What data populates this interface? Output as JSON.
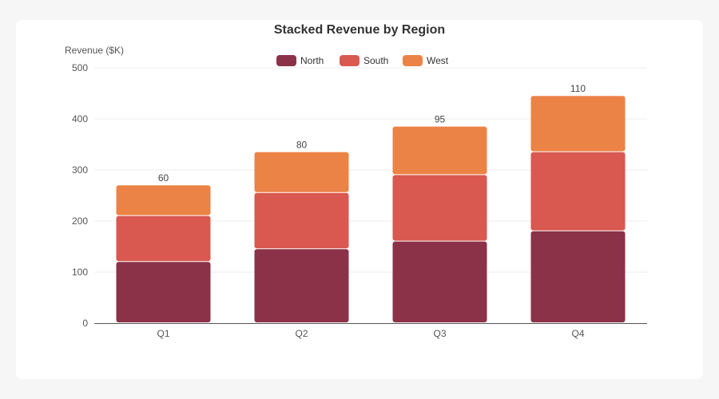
{
  "chart_data": {
    "type": "bar",
    "stacked": true,
    "title": "Stacked Revenue by Region",
    "xlabel": "",
    "ylabel": "Revenue ($K)",
    "ylim": [
      0,
      500
    ],
    "yticks": [
      0,
      100,
      200,
      300,
      400,
      500
    ],
    "grid": true,
    "legend_position": "top-center",
    "categories": [
      "Q1",
      "Q2",
      "Q3",
      "Q4"
    ],
    "series": [
      {
        "name": "North",
        "color": "#8b3249",
        "values": [
          120,
          145,
          160,
          180
        ]
      },
      {
        "name": "South",
        "color": "#d95850",
        "values": [
          90,
          110,
          130,
          155
        ]
      },
      {
        "name": "West",
        "color": "#ec8346",
        "values": [
          60,
          80,
          95,
          110
        ]
      }
    ]
  }
}
